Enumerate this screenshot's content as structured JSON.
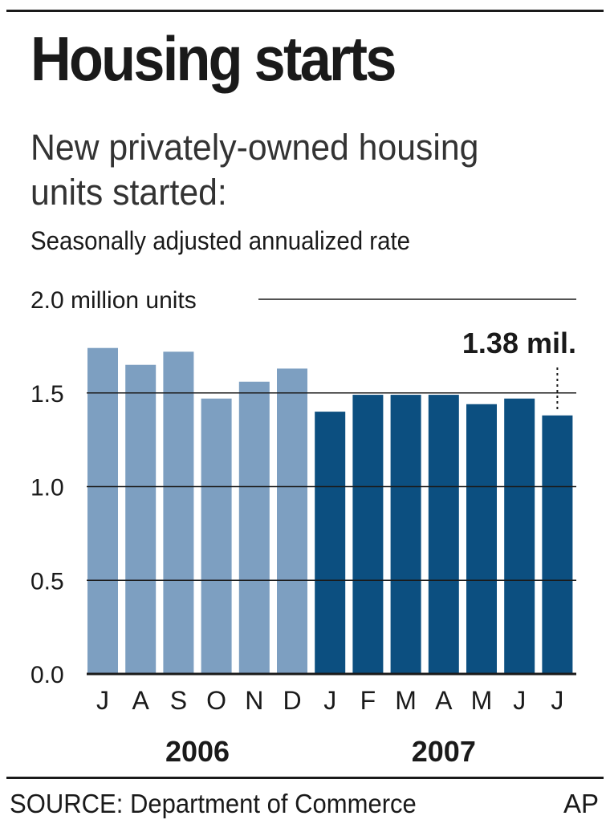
{
  "header": {
    "title": "Housing starts",
    "subtitle": "New privately-owned housing units started:",
    "note": "Seasonally adjusted annualized rate"
  },
  "footer": {
    "source": "SOURCE: Department of Commerce",
    "credit": "AP"
  },
  "colors": {
    "bar_2006": "#7d9fc1",
    "bar_2007": "#0c4f80",
    "text": "#1a1a1a",
    "gridline": "#1a1a1a"
  },
  "chart_data": {
    "type": "bar",
    "title": "Housing starts",
    "ylabel": "",
    "xlabel": "",
    "ylim": [
      0,
      2.0
    ],
    "y_ticks": [
      "0.0",
      "0.5",
      "1.0",
      "1.5",
      "2.0 million units"
    ],
    "categories": [
      "J",
      "A",
      "S",
      "O",
      "N",
      "D",
      "J",
      "F",
      "M",
      "A",
      "M",
      "J",
      "J"
    ],
    "values": [
      1.74,
      1.65,
      1.72,
      1.47,
      1.56,
      1.63,
      1.4,
      1.49,
      1.49,
      1.49,
      1.44,
      1.47,
      1.38
    ],
    "groups": [
      {
        "label": "2006",
        "start": 0,
        "end": 5,
        "color": "#7d9fc1"
      },
      {
        "label": "2007",
        "start": 6,
        "end": 12,
        "color": "#0c4f80"
      }
    ],
    "annotation": {
      "text": "1.38 mil.",
      "index": 12
    },
    "grid": true
  }
}
